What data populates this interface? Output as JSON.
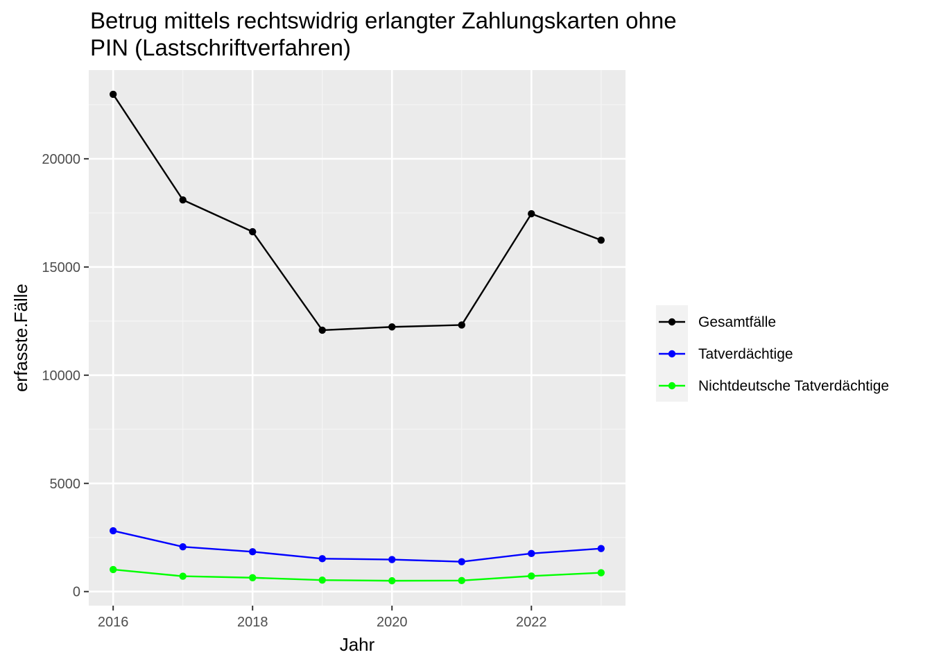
{
  "chart_data": {
    "type": "line",
    "title_lines": [
      "Betrug mittels rechtswidrig erlangter Zahlungskarten ohne",
      "PIN (Lastschriftverfahren)"
    ],
    "xlabel": "Jahr",
    "ylabel": "erfasste.Fälle",
    "x": [
      2016,
      2017,
      2018,
      2019,
      2020,
      2021,
      2022,
      2023
    ],
    "xlim": [
      2015.65,
      2023.35
    ],
    "ylim": [
      -650,
      24100
    ],
    "x_ticks": [
      2016,
      2018,
      2020,
      2022
    ],
    "y_ticks": [
      0,
      5000,
      10000,
      15000,
      20000
    ],
    "x_tick_labels": [
      "2016",
      "2018",
      "2020",
      "2022"
    ],
    "y_tick_labels": [
      "0",
      "5000",
      "10000",
      "15000",
      "20000"
    ],
    "grid": true,
    "legend_position": "right",
    "series": [
      {
        "name": "Gesamtfälle",
        "color": "#000000",
        "values": [
          22980,
          18100,
          16630,
          12080,
          12230,
          12320,
          17460,
          16240
        ]
      },
      {
        "name": "Tatverdächtige",
        "color": "#0000ff",
        "values": [
          2810,
          2070,
          1840,
          1520,
          1480,
          1380,
          1760,
          1990
        ]
      },
      {
        "name": "Nichtdeutsche Tatverdächtige",
        "color": "#00ff00",
        "values": [
          1020,
          710,
          640,
          530,
          500,
          510,
          720,
          870
        ]
      }
    ]
  },
  "colors": {
    "panel_background": "#ebebeb",
    "grid_major": "#ffffff",
    "grid_minor": "#f5f5f5",
    "legend_key_background": "#f2f2f2",
    "tick_text": "#4d4d4d"
  }
}
